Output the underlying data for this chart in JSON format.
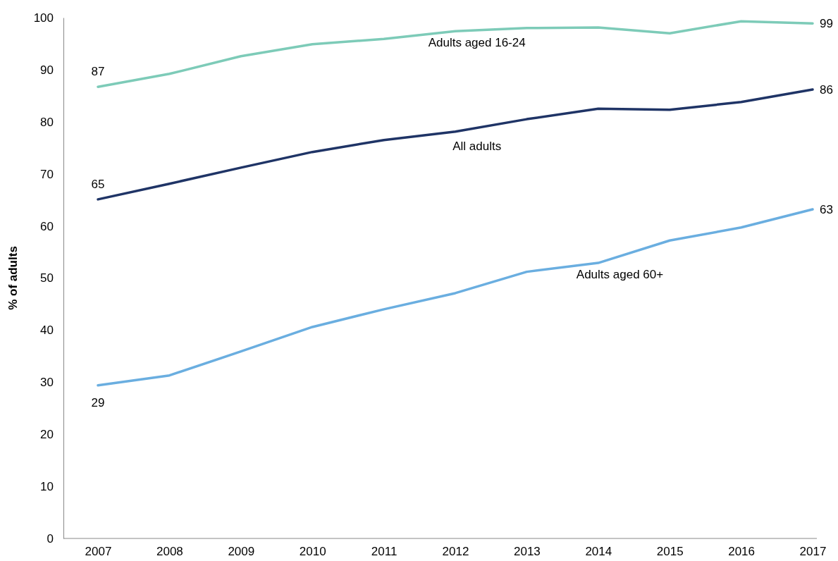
{
  "chart_data": {
    "type": "line",
    "ylabel": "% of adults",
    "categories": [
      "2007",
      "2008",
      "2009",
      "2010",
      "2011",
      "2012",
      "2013",
      "2014",
      "2015",
      "2016",
      "2017"
    ],
    "series": [
      {
        "name": "Adults aged 16-24",
        "color": "#7dcbb8",
        "values": [
          86.7,
          89.2,
          92.6,
          94.9,
          95.9,
          97.4,
          98.0,
          98.1,
          97.0,
          99.3,
          98.9
        ],
        "value_labels": [
          "87",
          null,
          null,
          null,
          null,
          null,
          null,
          null,
          null,
          null,
          "99"
        ]
      },
      {
        "name": "All adults",
        "color": "#1f3466",
        "values": [
          65.1,
          68.1,
          71.2,
          74.2,
          76.5,
          78.1,
          80.5,
          82.5,
          82.3,
          83.8,
          86.2
        ],
        "value_labels": [
          "65",
          null,
          null,
          null,
          null,
          null,
          null,
          null,
          null,
          null,
          "86"
        ]
      },
      {
        "name": "Adults aged 60+",
        "color": "#6aaee0",
        "values": [
          29.4,
          31.3,
          35.9,
          40.6,
          44.0,
          47.1,
          51.2,
          52.9,
          57.2,
          59.7,
          63.2
        ],
        "value_labels": [
          "29",
          null,
          null,
          null,
          null,
          null,
          null,
          null,
          null,
          null,
          "63"
        ]
      }
    ],
    "ylim": [
      0,
      100
    ],
    "yticks": [
      0,
      10,
      20,
      30,
      40,
      50,
      60,
      70,
      80,
      90,
      100
    ],
    "grid": false,
    "legend": false,
    "marker": "none",
    "line_style": "solid"
  }
}
